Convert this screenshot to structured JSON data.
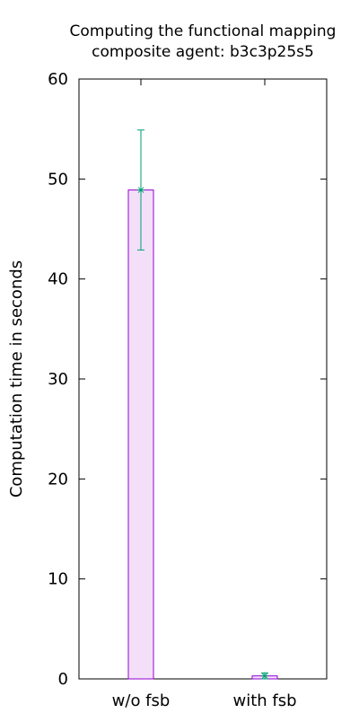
{
  "chart_data": {
    "type": "bar",
    "title": [
      "Computing the functional mapping",
      "composite agent: b3c3p25s5"
    ],
    "xlabel": "",
    "ylabel": "Computation time in seconds",
    "categories": [
      "w/o fsb",
      "with fsb"
    ],
    "values": [
      48.9,
      0.3
    ],
    "error_low": [
      42.9,
      0.0
    ],
    "error_high": [
      54.9,
      0.6
    ],
    "ylim": [
      0,
      60
    ],
    "yticks": [
      0,
      10,
      20,
      30,
      40,
      50,
      60
    ],
    "grid": false,
    "legend": "none",
    "colors": {
      "bar_fill": "#f3e0f8",
      "bar_stroke": "#9400d3",
      "error_bar": "#009e73",
      "axis": "#000000"
    }
  }
}
